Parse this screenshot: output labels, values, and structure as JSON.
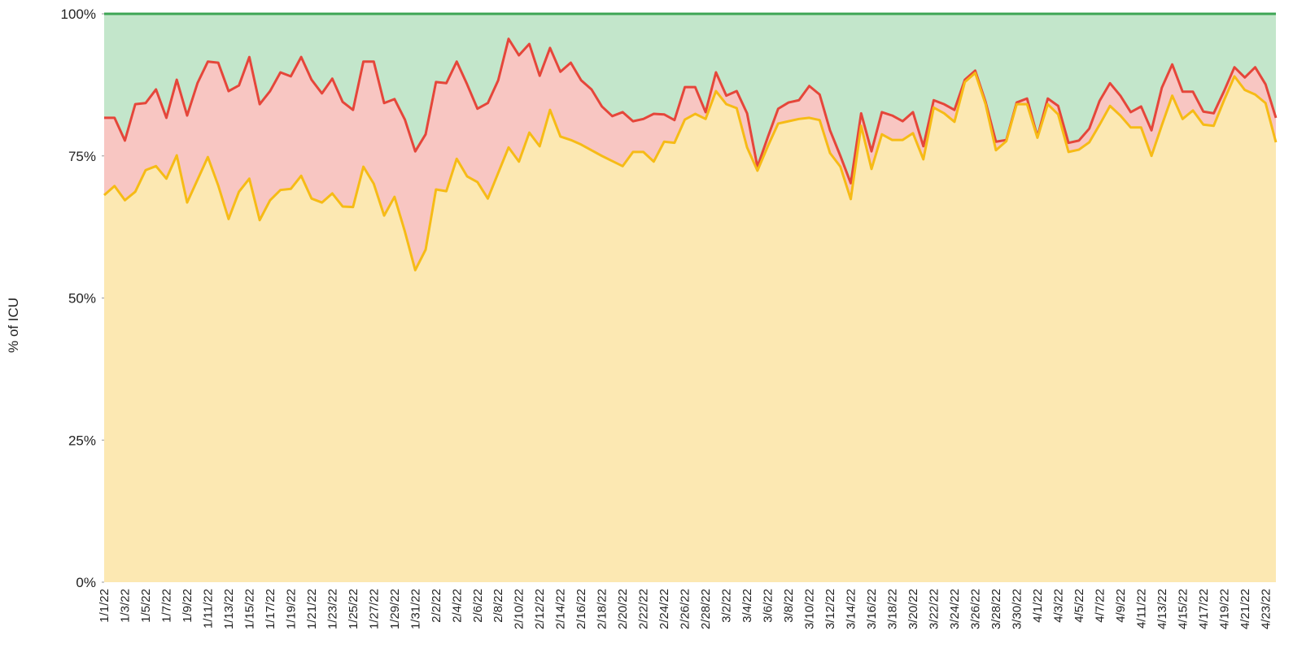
{
  "chart_data": {
    "type": "stacked_area",
    "y_label": "% of ICU",
    "categories": [
      "1/1/22",
      null,
      "1/3/22",
      null,
      "1/5/22",
      null,
      "1/7/22",
      null,
      "1/9/22",
      null,
      "1/11/22",
      null,
      "1/13/22",
      null,
      "1/15/22",
      null,
      "1/17/22",
      null,
      "1/19/22",
      null,
      "1/21/22",
      null,
      "1/23/22",
      null,
      "1/25/22",
      null,
      "1/27/22",
      null,
      "1/29/22",
      null,
      "1/31/22",
      null,
      "2/2/22",
      null,
      "2/4/22",
      null,
      "2/6/22",
      null,
      "2/8/22",
      null,
      "2/10/22",
      null,
      "2/12/22",
      null,
      "2/14/22",
      null,
      "2/16/22",
      null,
      "2/18/22",
      null,
      "2/20/22",
      null,
      "2/22/22",
      null,
      "2/24/22",
      null,
      "2/26/22",
      null,
      "2/28/22",
      null,
      "3/2/22",
      null,
      "3/4/22",
      null,
      "3/6/22",
      null,
      "3/8/22",
      null,
      "3/10/22",
      null,
      "3/12/22",
      null,
      "3/14/22",
      null,
      "3/16/22",
      null,
      "3/18/22",
      null,
      "3/20/22",
      null,
      "3/22/22",
      null,
      "3/24/22",
      null,
      "3/26/22",
      null,
      "3/28/22",
      null,
      "3/30/22",
      null,
      "4/1/22",
      null,
      "4/3/22",
      null,
      "4/5/22",
      null,
      "4/7/22",
      null,
      "4/9/22",
      null,
      "4/11/22",
      null,
      "4/13/22",
      null,
      "4/15/22",
      null,
      "4/17/22",
      null,
      "4/19/22",
      null,
      "4/21/22",
      null,
      "4/23/22",
      null
    ],
    "series": [
      {
        "color": "#f6bb16",
        "fill": "#fce8b2",
        "values": [
          68.1,
          69.7,
          67.2,
          68.7,
          72.5,
          73.2,
          71.0,
          75.1,
          66.8,
          70.8,
          74.8,
          69.8,
          63.9,
          68.7,
          71.0,
          63.7,
          67.2,
          69.0,
          69.2,
          71.5,
          67.5,
          66.8,
          68.4,
          66.1,
          66.0,
          73.1,
          70.1,
          64.5,
          67.8,
          61.7,
          54.9,
          58.5,
          69.1,
          68.8,
          74.5,
          71.4,
          70.4,
          67.5,
          72.0,
          76.5,
          74.0,
          79.1,
          76.7,
          83.1,
          78.4,
          77.8,
          77.0,
          76.0,
          75.0,
          74.1,
          73.2,
          75.7,
          75.7,
          74.0,
          77.5,
          77.3,
          81.4,
          82.4,
          81.5,
          86.4,
          84.1,
          83.4,
          76.5,
          72.4,
          76.7,
          80.7,
          81.1,
          81.5,
          81.7,
          81.3,
          75.5,
          73.1,
          67.4,
          80.3,
          72.7,
          78.8,
          77.8,
          77.8,
          79.0,
          74.4,
          83.5,
          82.5,
          81.0,
          88.0,
          89.6,
          84.1,
          76.0,
          77.6,
          84.1,
          84.1,
          78.2,
          84.1,
          82.3,
          75.7,
          76.1,
          77.4,
          80.5,
          83.8,
          82.1,
          80.0,
          80.0,
          75.0,
          80.4,
          85.6,
          81.5,
          83.0,
          80.5,
          80.3,
          84.8,
          89.0,
          86.6,
          85.8,
          84.3,
          77.4
        ]
      },
      {
        "color": "#e5463a",
        "fill": "#f8c6c2",
        "values": [
          13.6,
          12.0,
          10.5,
          15.4,
          11.8,
          13.5,
          10.7,
          13.3,
          15.3,
          17.0,
          16.8,
          21.6,
          22.5,
          18.7,
          21.4,
          20.4,
          19.2,
          20.7,
          19.8,
          20.9,
          20.9,
          19.2,
          20.2,
          18.4,
          17.1,
          18.5,
          21.5,
          19.8,
          17.2,
          19.7,
          20.9,
          20.3,
          18.9,
          19.0,
          17.1,
          16.2,
          12.9,
          16.8,
          16.3,
          19.1,
          18.7,
          15.6,
          12.4,
          10.9,
          11.4,
          13.6,
          11.3,
          10.7,
          8.7,
          7.9,
          9.5,
          5.4,
          5.8,
          8.4,
          4.8,
          4.0,
          5.7,
          4.7,
          1.2,
          3.3,
          1.5,
          3.0,
          6.0,
          0.7,
          1.6,
          2.6,
          3.3,
          3.3,
          5.6,
          4.5,
          4.0,
          1.9,
          2.8,
          2.2,
          3.1,
          3.9,
          4.3,
          3.3,
          3.7,
          2.3,
          1.3,
          1.6,
          2.1,
          0.4,
          0.4,
          0.4,
          1.5,
          0.2,
          0.3,
          1.0,
          0.2,
          1.0,
          1.5,
          1.6,
          1.6,
          2.4,
          4.2,
          4.0,
          3.5,
          2.7,
          3.7,
          4.5,
          6.6,
          5.5,
          4.8,
          3.3,
          2.3,
          2.2,
          1.6,
          1.6,
          2.2,
          4.8,
          3.3,
          4.3
        ]
      },
      {
        "color": "#3da554",
        "fill": "#c3e6cb",
        "values": [
          18.3,
          18.3,
          22.3,
          15.9,
          15.7,
          13.3,
          18.3,
          11.6,
          17.9,
          12.2,
          8.4,
          8.6,
          13.6,
          12.6,
          7.6,
          15.9,
          13.6,
          10.3,
          11.0,
          7.6,
          11.6,
          14.0,
          11.4,
          15.5,
          16.9,
          8.4,
          8.4,
          15.7,
          15.0,
          18.6,
          24.2,
          21.2,
          12.0,
          12.2,
          8.4,
          12.4,
          16.7,
          15.7,
          11.7,
          4.4,
          7.3,
          5.3,
          10.9,
          6.0,
          10.2,
          8.6,
          11.7,
          13.3,
          16.3,
          18.0,
          17.3,
          18.9,
          18.5,
          17.6,
          17.7,
          18.7,
          12.9,
          12.9,
          17.3,
          10.3,
          14.4,
          13.6,
          17.5,
          26.9,
          21.7,
          16.7,
          15.6,
          15.2,
          12.7,
          14.2,
          20.5,
          25.0,
          29.8,
          17.5,
          24.2,
          17.3,
          17.9,
          18.9,
          17.3,
          23.3,
          15.2,
          15.9,
          16.9,
          11.6,
          10.0,
          15.5,
          22.5,
          22.2,
          15.6,
          14.9,
          21.6,
          14.9,
          16.2,
          22.7,
          22.3,
          20.2,
          15.3,
          12.2,
          14.4,
          17.3,
          16.3,
          20.5,
          13.0,
          8.9,
          13.7,
          13.7,
          17.2,
          17.5,
          13.6,
          9.4,
          11.2,
          9.4,
          12.4,
          18.3
        ]
      }
    ],
    "ylim": [
      0,
      100
    ],
    "yticks": [
      {
        "value": 0,
        "label": "0%"
      },
      {
        "value": 25,
        "label": "25%"
      },
      {
        "value": 50,
        "label": "50%"
      },
      {
        "value": 75,
        "label": "75%"
      },
      {
        "value": 100,
        "label": "100%"
      }
    ]
  }
}
